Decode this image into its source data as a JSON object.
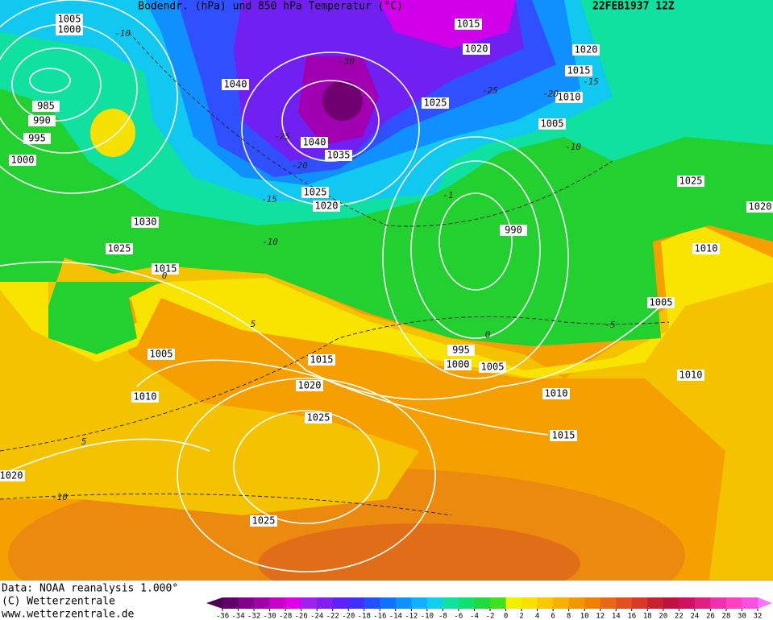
{
  "header": {
    "title": "Bodendr. (hPa) und 850 hPa Temperatur (°C)",
    "date": "22FEB1937 12Z"
  },
  "isobar_labels": [
    1005,
    1000,
    985,
    990,
    995,
    1000,
    1030,
    1025,
    1015,
    1005,
    1010,
    1020,
    1040,
    1040,
    1035,
    1025,
    1020,
    1015,
    1020,
    1025,
    1020,
    1015,
    1010,
    1005,
    1025,
    1020,
    990,
    1010,
    1005,
    1010,
    995,
    1000,
    1005,
    1015,
    1020,
    1025,
    1010,
    1015,
    1025
  ],
  "temperature_labels": [
    -10,
    -30,
    -25,
    -20,
    -15,
    -10,
    -25,
    -20,
    -15,
    -10,
    -5,
    0,
    5,
    5,
    -10,
    0,
    -1
  ],
  "footer": {
    "data": "Data: NOAA reanalysis 1.000°",
    "copyright": "(C) Wetterzentrale",
    "url": "www.wetterzentrale.de"
  },
  "colorbar": {
    "ticks": [
      -36,
      -34,
      -32,
      -30,
      -28,
      -26,
      -24,
      -22,
      -20,
      -18,
      -16,
      -14,
      -12,
      -10,
      -8,
      -6,
      -4,
      -2,
      0,
      2,
      4,
      6,
      8,
      10,
      12,
      14,
      16,
      18,
      20,
      22,
      24,
      26,
      28,
      30,
      32
    ],
    "colors": [
      "#500050",
      "#60006a",
      "#80008a",
      "#a000a8",
      "#c800c8",
      "#e000e8",
      "#a020f0",
      "#8020f0",
      "#6020f8",
      "#4030ff",
      "#2050ff",
      "#1070ff",
      "#1090ff",
      "#10b0ff",
      "#10d0f0",
      "#10e0a0",
      "#10e070",
      "#20d840",
      "#40e020",
      "#f0f000",
      "#f8e000",
      "#f8c800",
      "#f8b000",
      "#f09800",
      "#f08000",
      "#e86818",
      "#e05020",
      "#d83828",
      "#c82030",
      "#c01040",
      "#d01060",
      "#e02080",
      "#f030b0",
      "#ff40c0",
      "#f850e0",
      "#ff70ff"
    ]
  }
}
